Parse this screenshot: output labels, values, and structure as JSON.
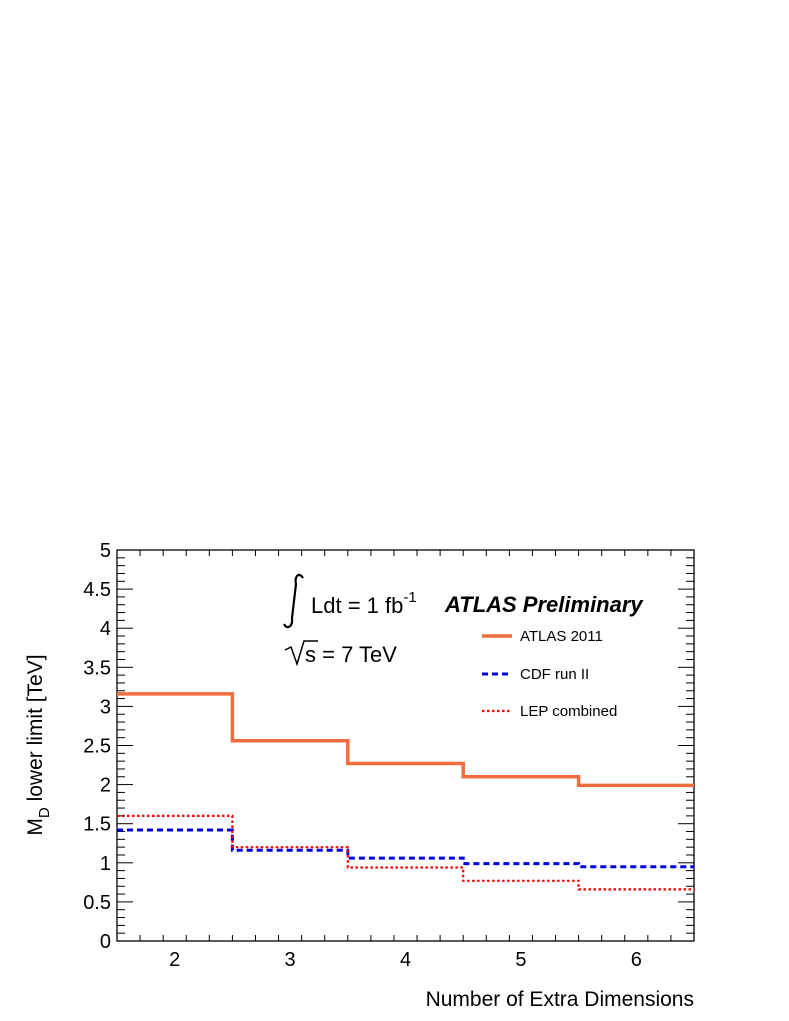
{
  "chart_data": {
    "type": "line",
    "step": true,
    "xlabel": "Number of Extra Dimensions",
    "ylabel_main": "M",
    "ylabel_sub": "D",
    "ylabel_rest": " lower limit [TeV]",
    "xlim": [
      1.5,
      6.5
    ],
    "ylim": [
      0,
      5
    ],
    "xticks": [
      2,
      3,
      4,
      5,
      6
    ],
    "yticks": [
      0,
      0.5,
      1,
      1.5,
      2,
      2.5,
      3,
      3.5,
      4,
      4.5,
      5
    ],
    "ytick_labels": [
      "0",
      "0.5",
      "1",
      "1.5",
      "2",
      "2.5",
      "3",
      "3.5",
      "4",
      "4.5",
      "5"
    ],
    "grid": false,
    "legend_position": "top-right",
    "series": [
      {
        "name": "ATLAS 2011",
        "color": "#f26d3d",
        "style": "solid",
        "x": [
          2,
          3,
          4,
          5,
          6
        ],
        "values": [
          3.16,
          2.56,
          2.27,
          2.1,
          1.99
        ]
      },
      {
        "name": "CDF run II",
        "color": "#0000e0",
        "style": "dashed",
        "x": [
          2,
          3,
          4,
          5,
          6
        ],
        "values": [
          1.42,
          1.16,
          1.06,
          0.99,
          0.95
        ]
      },
      {
        "name": "LEP combined",
        "color": "#ff0000",
        "style": "dotted",
        "x": [
          2,
          3,
          4,
          5,
          6
        ],
        "values": [
          1.6,
          1.2,
          0.94,
          0.77,
          0.66
        ]
      }
    ],
    "annotations": {
      "lumi_prefix": "Ldt = 1 fb",
      "lumi_exp": "-1",
      "energy": "s = 7 TeV",
      "brand": "ATLAS Preliminary"
    }
  }
}
